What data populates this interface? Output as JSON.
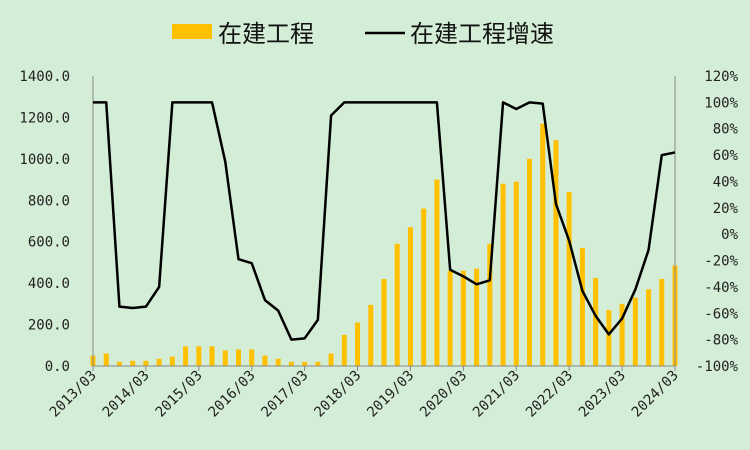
{
  "chart_data": {
    "type": "bar",
    "legend_placement": "top",
    "grid": false,
    "x": [
      "2013/03",
      "2013/06",
      "2013/09",
      "2013/12",
      "2014/03",
      "2014/06",
      "2014/09",
      "2014/12",
      "2015/03",
      "2015/06",
      "2015/09",
      "2015/12",
      "2016/03",
      "2016/06",
      "2016/09",
      "2016/12",
      "2017/03",
      "2017/06",
      "2017/09",
      "2017/12",
      "2018/03",
      "2018/06",
      "2018/09",
      "2018/12",
      "2019/03",
      "2019/06",
      "2019/09",
      "2019/12",
      "2020/03",
      "2020/06",
      "2020/09",
      "2020/12",
      "2021/03",
      "2021/06",
      "2021/09",
      "2021/12",
      "2022/03",
      "2022/06",
      "2022/09",
      "2022/12",
      "2023/03",
      "2023/06",
      "2023/09",
      "2023/12",
      "2024/03"
    ],
    "x_tick_labels": [
      "2013/03",
      "2014/03",
      "2015/03",
      "2016/03",
      "2017/03",
      "2018/03",
      "2019/03",
      "2020/03",
      "2021/03",
      "2022/03",
      "2023/03",
      "2024/03"
    ],
    "y_tick_labels": [
      "0.0",
      "200.0",
      "400.0",
      "600.0",
      "800.0",
      "1000.0",
      "1200.0",
      "1400.0"
    ],
    "y2_tick_labels": [
      "-100%",
      "-80%",
      "-60%",
      "-40%",
      "-20%",
      "0%",
      "20%",
      "40%",
      "60%",
      "80%",
      "100%",
      "120%"
    ],
    "ylim": [
      0,
      1400
    ],
    "y2lim": [
      -100,
      120
    ],
    "series": [
      {
        "name": "在建工程",
        "type": "bar",
        "axis": "left",
        "color": "#ffc000",
        "values": [
          50,
          60,
          20,
          25,
          25,
          35,
          45,
          95,
          95,
          95,
          75,
          80,
          80,
          50,
          35,
          20,
          20,
          20,
          60,
          150,
          210,
          295,
          420,
          590,
          670,
          760,
          900,
          460,
          460,
          470,
          590,
          880,
          890,
          1000,
          1170,
          1090,
          840,
          570,
          425,
          270,
          300,
          330,
          370,
          420,
          485
        ]
      },
      {
        "name": "在建工程增速",
        "type": "line",
        "axis": "right",
        "color": "#000000",
        "values": [
          100,
          100,
          -55,
          -56,
          -55,
          -40,
          100,
          100,
          100,
          100,
          55,
          -19,
          -22,
          -50,
          -58,
          -80,
          -79,
          -65,
          90,
          100,
          100,
          100,
          100,
          100,
          100,
          100,
          100,
          -27,
          -32,
          -38,
          -35,
          100,
          95,
          100,
          99,
          23,
          -5,
          -43,
          -62,
          -76,
          -64,
          -42,
          -12,
          60,
          62
        ]
      }
    ]
  }
}
